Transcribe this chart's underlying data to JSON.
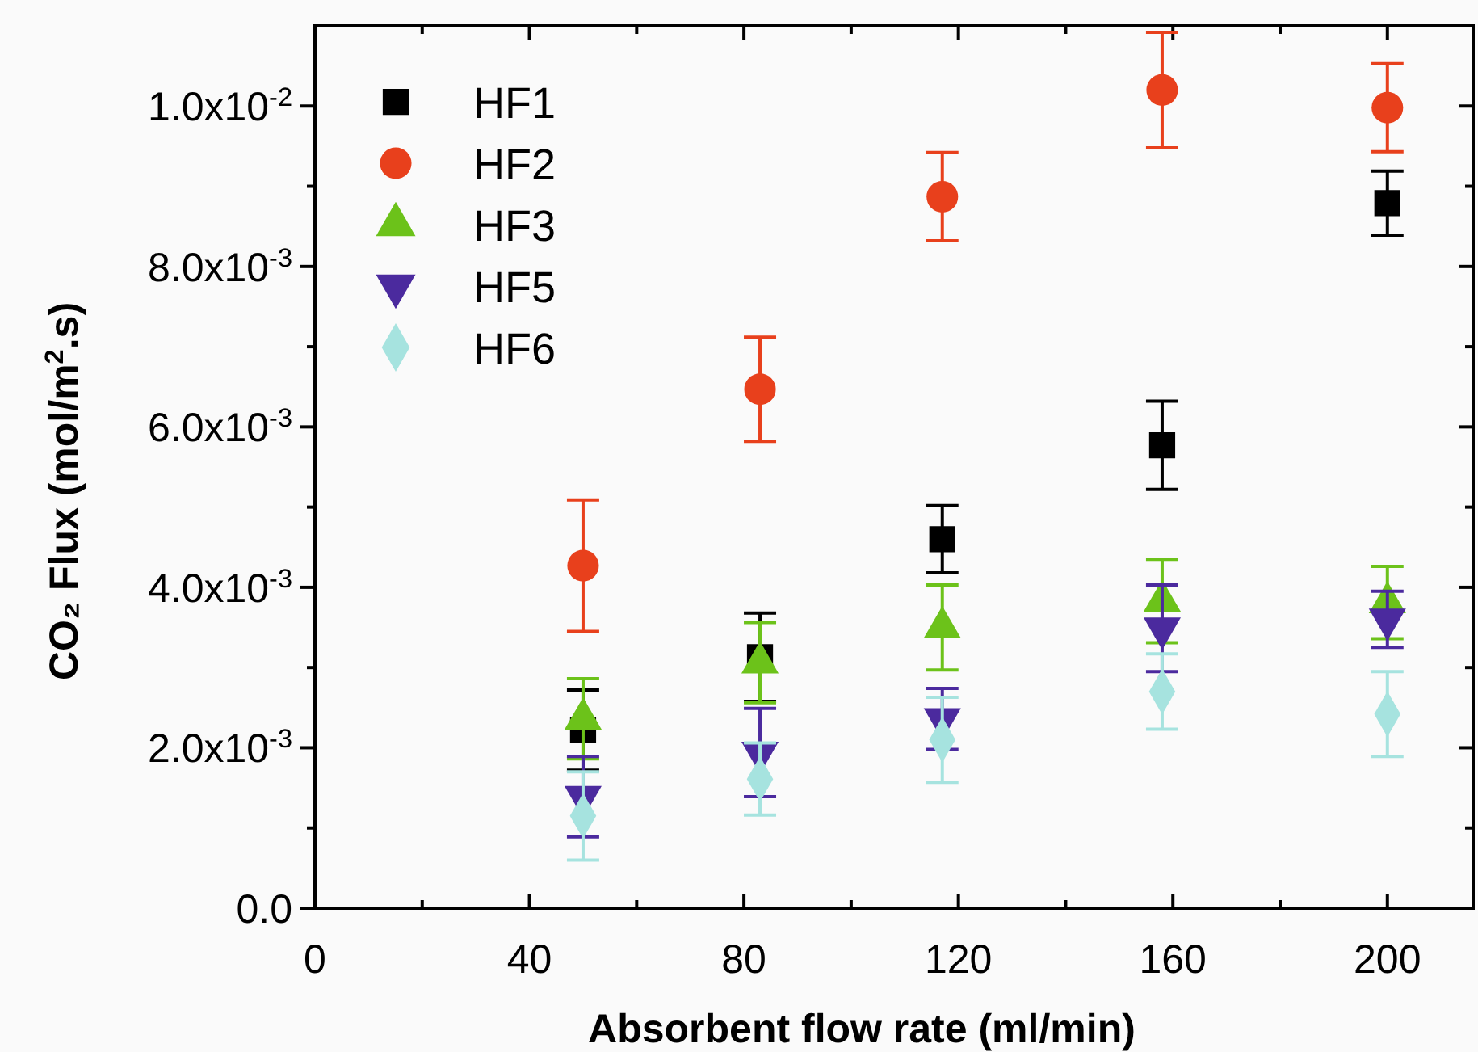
{
  "chart_data": {
    "type": "scatter",
    "xlabel": "Absorbent flow rate (ml/min)",
    "ylabel": "CO₂ Flux (mol/m$^{2}$.s)",
    "xlim": [
      0,
      216
    ],
    "ylim": [
      0,
      0.011
    ],
    "xticks": [
      0,
      {
        "value": 20,
        "label": null
      },
      40,
      {
        "value": 60,
        "label": null
      },
      80,
      {
        "value": 100,
        "label": null
      },
      120,
      {
        "value": 140,
        "label": null
      },
      160,
      {
        "value": 180,
        "label": null
      },
      200
    ],
    "yticks": [
      {
        "value": 0,
        "label": "0.0"
      },
      {
        "value": 0.001,
        "label": null
      },
      {
        "value": 0.002,
        "label": "2.0x10$^{-3}$"
      },
      {
        "value": 0.003,
        "label": null
      },
      {
        "value": 0.004,
        "label": "4.0x10$^{-3}$"
      },
      {
        "value": 0.005,
        "label": null
      },
      {
        "value": 0.006,
        "label": "6.0x10$^{-3}$"
      },
      {
        "value": 0.007,
        "label": null
      },
      {
        "value": 0.008,
        "label": "8.0x10$^{-3}$"
      },
      {
        "value": 0.009,
        "label": null
      },
      {
        "value": 0.01,
        "label": "1.0x10$^{-2}$"
      }
    ],
    "x": [
      50,
      83,
      117,
      158,
      200
    ],
    "grid": false,
    "legend": "top left",
    "series": [
      {
        "name": "HF1",
        "color": "#000000",
        "marker": "square",
        "values": [
          0.00222,
          0.00313,
          0.0046,
          0.00577,
          0.00879
        ],
        "errors": [
          0.0005,
          0.00055,
          0.00042,
          0.00055,
          0.0004
        ]
      },
      {
        "name": "HF2",
        "color": "#e8401c",
        "marker": "circle",
        "values": [
          0.00427,
          0.00647,
          0.00887,
          0.0102,
          0.00998
        ],
        "errors": [
          0.00082,
          0.00065,
          0.00055,
          0.00072,
          0.00055
        ]
      },
      {
        "name": "HF3",
        "color": "#6cc21a",
        "marker": "triangle",
        "values": [
          0.00236,
          0.00306,
          0.0035,
          0.00383,
          0.00381
        ],
        "errors": [
          0.0005,
          0.0005,
          0.00053,
          0.00052,
          0.00045
        ]
      },
      {
        "name": "HF5",
        "color": "#4b2a9e",
        "marker": "triangle-down",
        "values": [
          0.00139,
          0.00194,
          0.00236,
          0.00349,
          0.0036
        ],
        "errors": [
          0.0005,
          0.00055,
          0.00038,
          0.00054,
          0.00035
        ]
      },
      {
        "name": "HF6",
        "color": "#a6e3df",
        "marker": "diamond",
        "values": [
          0.00115,
          0.00161,
          0.0021,
          0.0027,
          0.00242
        ],
        "errors": [
          0.00055,
          0.00045,
          0.00053,
          0.00047,
          0.00053
        ]
      }
    ]
  }
}
